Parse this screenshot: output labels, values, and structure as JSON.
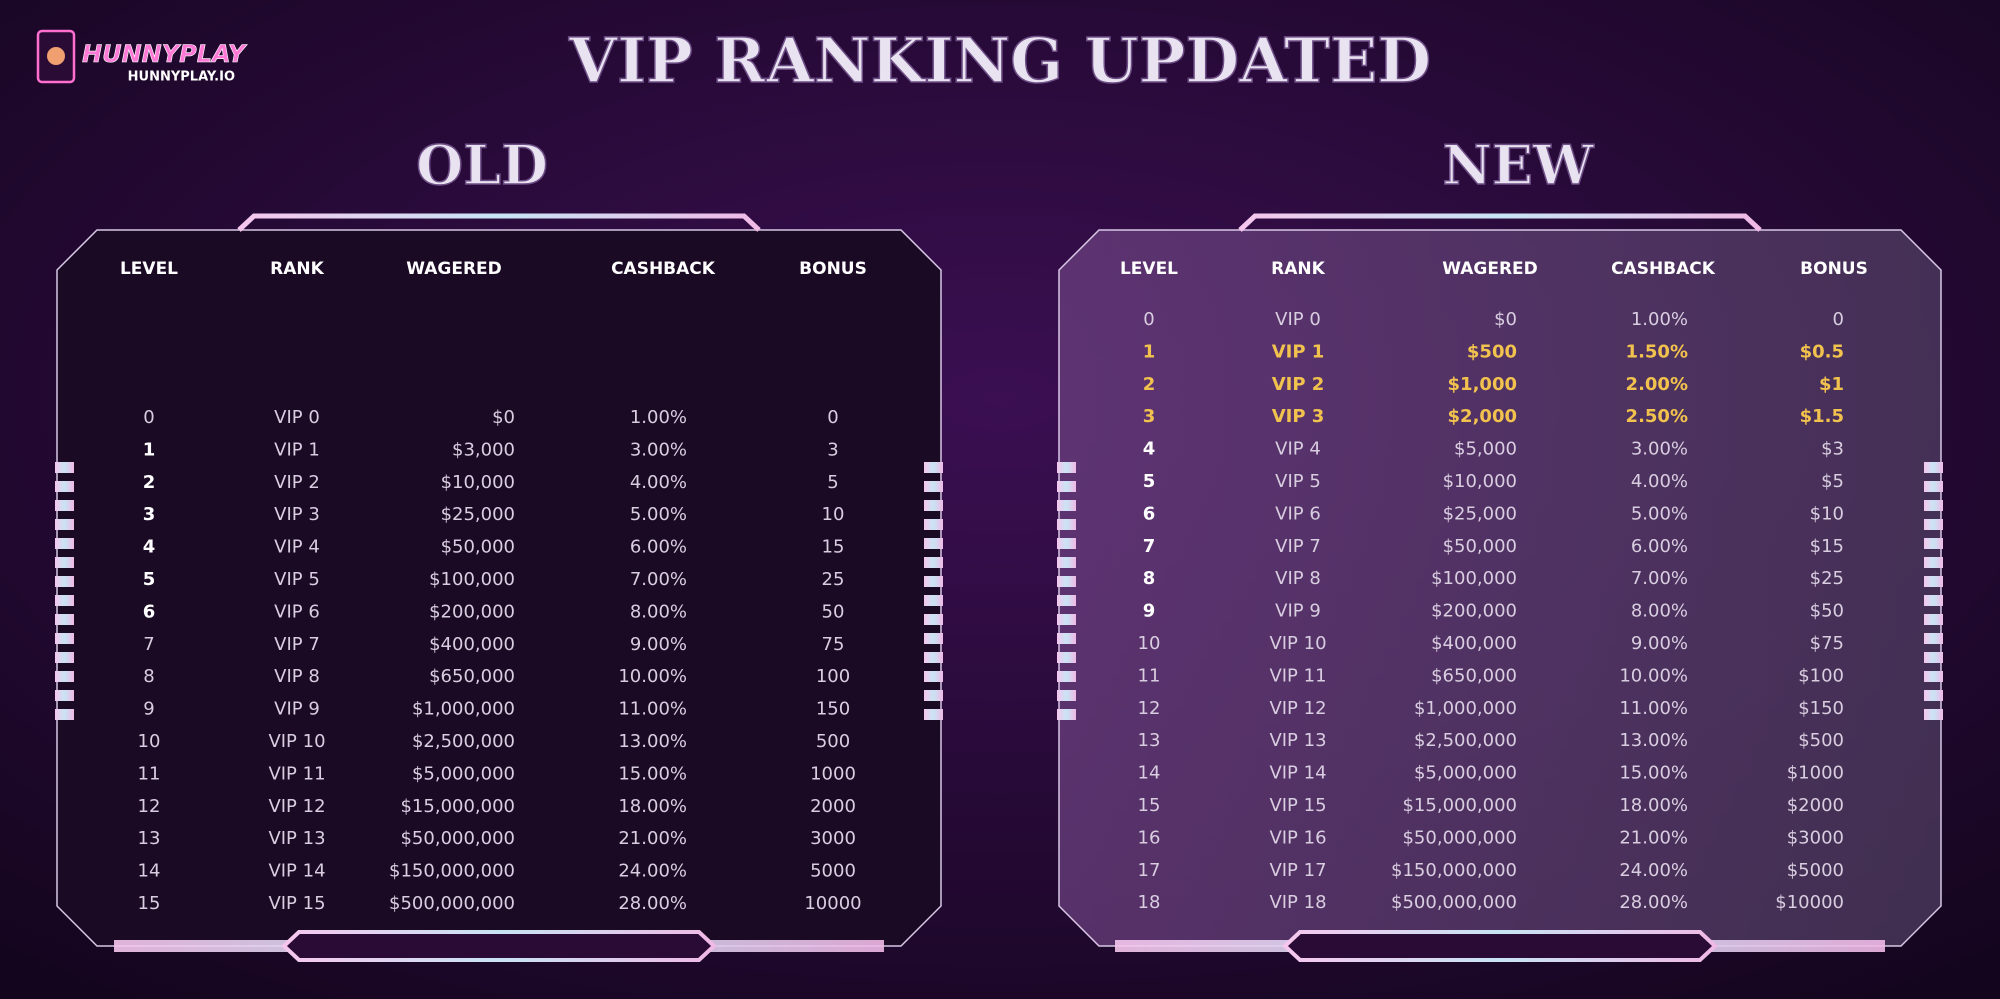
{
  "header": {
    "brand": "HUNNYPLAY",
    "site": "HUNNYPLAY.IO",
    "title": "VIP RANKING UPDATED"
  },
  "old": {
    "title": "OLD",
    "columns": [
      "LEVEL",
      "RANK",
      "WAGERED",
      "CASHBACK",
      "BONUS"
    ],
    "rows": [
      [
        "0",
        "VIP 0",
        "$0",
        "1.00%",
        "0"
      ],
      [
        "1",
        "VIP 1",
        "$3,000",
        "3.00%",
        "3"
      ],
      [
        "2",
        "VIP 2",
        "$10,000",
        "4.00%",
        "5"
      ],
      [
        "3",
        "VIP 3",
        "$25,000",
        "5.00%",
        "10"
      ],
      [
        "4",
        "VIP 4",
        "$50,000",
        "6.00%",
        "15"
      ],
      [
        "5",
        "VIP 5",
        "$100,000",
        "7.00%",
        "25"
      ],
      [
        "6",
        "VIP 6",
        "$200,000",
        "8.00%",
        "50"
      ],
      [
        "7",
        "VIP 7",
        "$400,000",
        "9.00%",
        "75"
      ],
      [
        "8",
        "VIP 8",
        "$650,000",
        "10.00%",
        "100"
      ],
      [
        "9",
        "VIP 9",
        "$1,000,000",
        "11.00%",
        "150"
      ],
      [
        "10",
        "VIP 10",
        "$2,500,000",
        "13.00%",
        "500"
      ],
      [
        "11",
        "VIP 11",
        "$5,000,000",
        "15.00%",
        "1000"
      ],
      [
        "12",
        "VIP 12",
        "$15,000,000",
        "18.00%",
        "2000"
      ],
      [
        "13",
        "VIP 13",
        "$50,000,000",
        "21.00%",
        "3000"
      ],
      [
        "14",
        "VIP 14",
        "$150,000,000",
        "24.00%",
        "5000"
      ],
      [
        "15",
        "VIP 15",
        "$500,000,000",
        "28.00%",
        "10000"
      ]
    ]
  },
  "new": {
    "title": "NEW",
    "columns": [
      "LEVEL",
      "RANK",
      "WAGERED",
      "CASHBACK",
      "BONUS"
    ],
    "rows": [
      [
        "0",
        "VIP 0",
        "$0",
        "1.00%",
        "0"
      ],
      [
        "1",
        "VIP 1",
        "$500",
        "1.50%",
        "$0.5"
      ],
      [
        "2",
        "VIP 2",
        "$1,000",
        "2.00%",
        "$1"
      ],
      [
        "3",
        "VIP 3",
        "$2,000",
        "2.50%",
        "$1.5"
      ],
      [
        "4",
        "VIP 4",
        "$5,000",
        "3.00%",
        "$3"
      ],
      [
        "5",
        "VIP 5",
        "$10,000",
        "4.00%",
        "$5"
      ],
      [
        "6",
        "VIP 6",
        "$25,000",
        "5.00%",
        "$10"
      ],
      [
        "7",
        "VIP 7",
        "$50,000",
        "6.00%",
        "$15"
      ],
      [
        "8",
        "VIP 8",
        "$100,000",
        "7.00%",
        "$25"
      ],
      [
        "9",
        "VIP 9",
        "$200,000",
        "8.00%",
        "$50"
      ],
      [
        "10",
        "VIP 10",
        "$400,000",
        "9.00%",
        "$75"
      ],
      [
        "11",
        "VIP 11",
        "$650,000",
        "10.00%",
        "$100"
      ],
      [
        "12",
        "VIP 12",
        "$1,000,000",
        "11.00%",
        "$150"
      ],
      [
        "13",
        "VIP 13",
        "$2,500,000",
        "13.00%",
        "$500"
      ],
      [
        "14",
        "VIP 14",
        "$5,000,000",
        "15.00%",
        "$1000"
      ],
      [
        "15",
        "VIP 15",
        "$15,000,000",
        "18.00%",
        "$2000"
      ],
      [
        "16",
        "VIP 16",
        "$50,000,000",
        "21.00%",
        "$3000"
      ],
      [
        "17",
        "VIP 17",
        "$150,000,000",
        "24.00%",
        "$5000"
      ],
      [
        "18",
        "VIP 18",
        "$500,000,000",
        "28.00%",
        "$10000"
      ]
    ]
  }
}
